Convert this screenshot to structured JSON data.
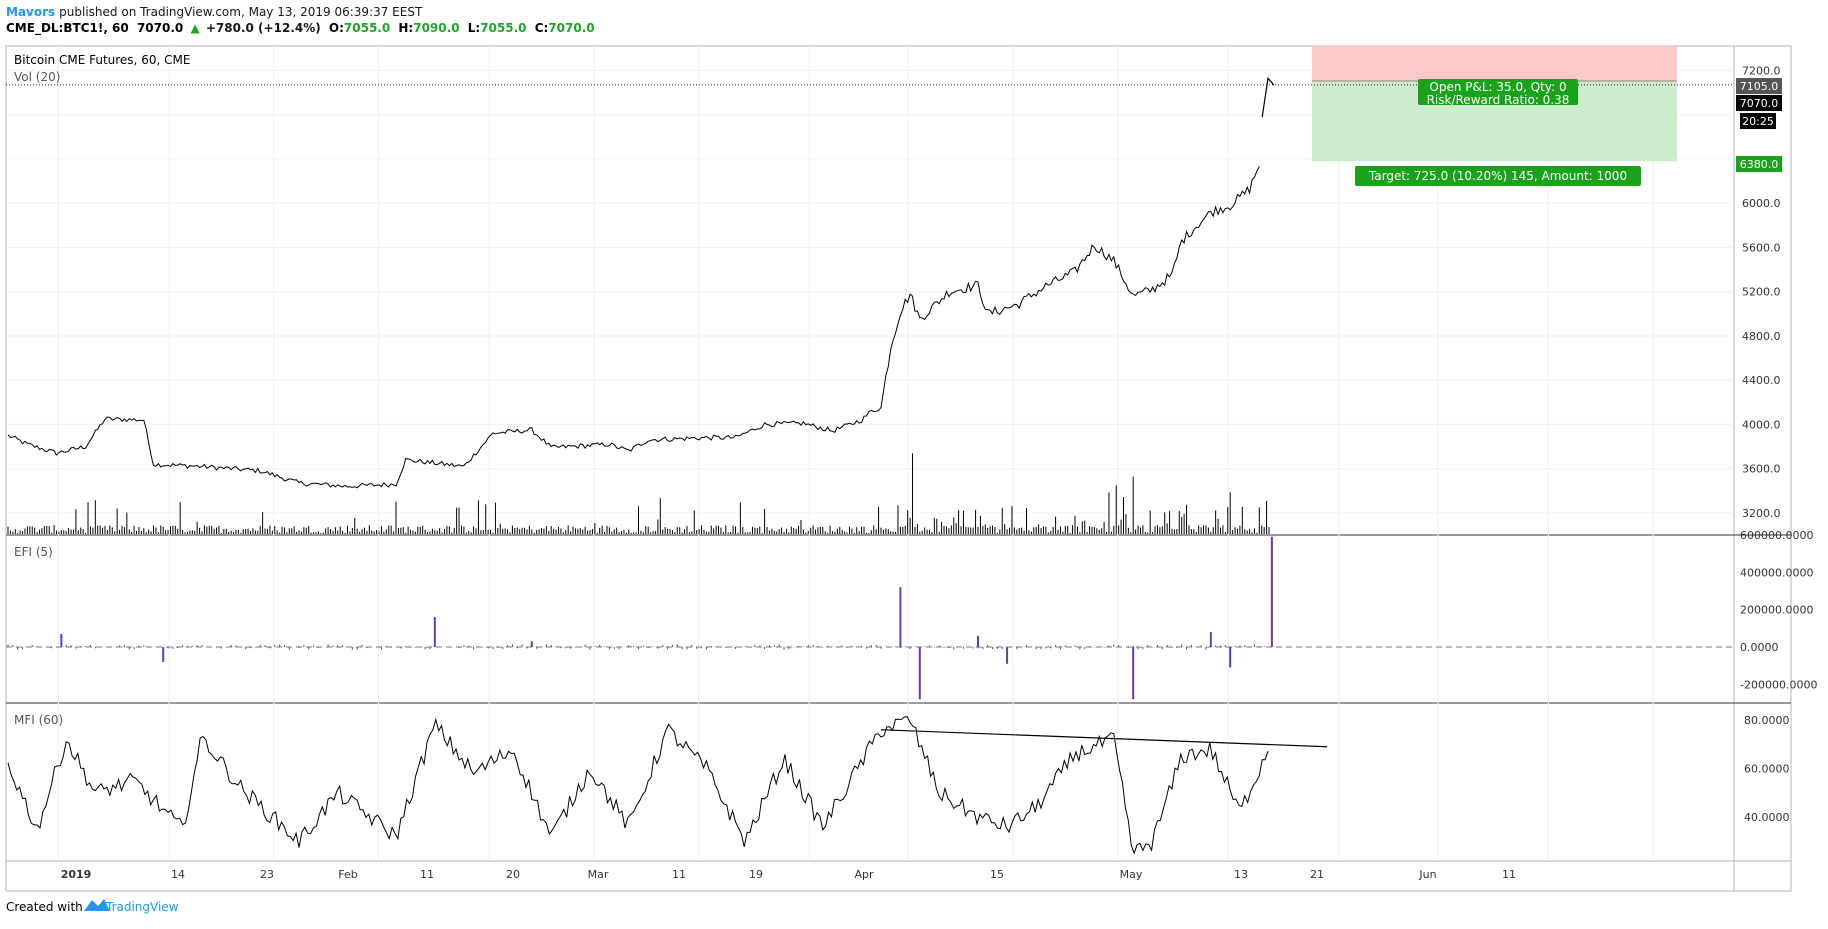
{
  "header": {
    "author": "Mavors",
    "published_text": "published on TradingView.com, May 13, 2019 06:39:37 EEST",
    "symbol": "CME_DL:BTC1!, 60",
    "last_price": "7070.0",
    "change": "+780.0 (+12.4%)",
    "ohlc": [
      {
        "label": "O:",
        "value": "7055.0"
      },
      {
        "label": "H:",
        "value": "7090.0"
      },
      {
        "label": "L:",
        "value": "7055.0"
      },
      {
        "label": "C:",
        "value": "7070.0"
      }
    ]
  },
  "footer": {
    "created_with": "Created with",
    "brand": "TradingView"
  },
  "colors": {
    "up": "#26a69a",
    "green_text": "#21a32a",
    "price_line": "#000000",
    "efi": "#673ab7",
    "risk_zone": "#ffc9c9",
    "reward_zone": "#cdeccd",
    "label_green": "#1aa31a",
    "brand_blue": "#2196f3"
  },
  "chart_data": [
    {
      "type": "line",
      "title": "Bitcoin CME Futures, 60, CME",
      "subtitle": "Vol (20)",
      "y_ticks": [
        3200,
        3600,
        4000,
        4400,
        4800,
        5200,
        5600,
        6000,
        6400,
        6800,
        7200
      ],
      "y_tick_labels": [
        "3200.0",
        "3600.0",
        "4000.0",
        "4400.0",
        "4800.0",
        "5200.0",
        "5600.0",
        "6000.0",
        "",
        "",
        "7200.0"
      ],
      "ylim": [
        3000,
        7450
      ],
      "x_ticks": [
        "2019",
        "14",
        "23",
        "Feb",
        "11",
        "20",
        "Mar",
        "11",
        "19",
        "Apr",
        "15",
        "May",
        "13",
        "21",
        "Jun",
        "11"
      ],
      "price_anchors": [
        {
          "d": 0,
          "v": 3900
        },
        {
          "d": 2,
          "v": 3820
        },
        {
          "d": 5,
          "v": 3740
        },
        {
          "d": 8,
          "v": 3800
        },
        {
          "d": 10,
          "v": 4050
        },
        {
          "d": 14,
          "v": 4040
        },
        {
          "d": 15,
          "v": 3640
        },
        {
          "d": 20,
          "v": 3620
        },
        {
          "d": 26,
          "v": 3580
        },
        {
          "d": 30,
          "v": 3470
        },
        {
          "d": 35,
          "v": 3440
        },
        {
          "d": 40,
          "v": 3460
        },
        {
          "d": 41,
          "v": 3680
        },
        {
          "d": 47,
          "v": 3620
        },
        {
          "d": 50,
          "v": 3920
        },
        {
          "d": 54,
          "v": 3950
        },
        {
          "d": 56,
          "v": 3790
        },
        {
          "d": 62,
          "v": 3820
        },
        {
          "d": 64,
          "v": 3760
        },
        {
          "d": 66,
          "v": 3860
        },
        {
          "d": 72,
          "v": 3880
        },
        {
          "d": 75,
          "v": 3880
        },
        {
          "d": 78,
          "v": 4000
        },
        {
          "d": 82,
          "v": 4010
        },
        {
          "d": 85,
          "v": 3940
        },
        {
          "d": 88,
          "v": 4040
        },
        {
          "d": 89,
          "v": 4120
        },
        {
          "d": 90,
          "v": 4150
        },
        {
          "d": 91,
          "v": 4700
        },
        {
          "d": 92,
          "v": 5020
        },
        {
          "d": 93,
          "v": 5180
        },
        {
          "d": 94,
          "v": 4950
        },
        {
          "d": 97,
          "v": 5200
        },
        {
          "d": 100,
          "v": 5260
        },
        {
          "d": 101,
          "v": 5000
        },
        {
          "d": 104,
          "v": 5080
        },
        {
          "d": 107,
          "v": 5250
        },
        {
          "d": 110,
          "v": 5380
        },
        {
          "d": 112,
          "v": 5620
        },
        {
          "d": 114,
          "v": 5480
        },
        {
          "d": 116,
          "v": 5160
        },
        {
          "d": 118,
          "v": 5220
        },
        {
          "d": 120,
          "v": 5350
        },
        {
          "d": 121,
          "v": 5660
        },
        {
          "d": 122,
          "v": 5750
        },
        {
          "d": 124,
          "v": 5920
        },
        {
          "d": 126,
          "v": 5980
        },
        {
          "d": 128,
          "v": 6130
        },
        {
          "d": 129,
          "v": 6350
        }
      ],
      "gap_price": {
        "start": 129.3,
        "end": 130.5,
        "values": [
          6780,
          7130,
          7070
        ]
      }
    },
    {
      "type": "bar",
      "title": "EFI (5)",
      "y_ticks": [
        -200000,
        0,
        200000,
        400000,
        600000
      ],
      "y_tick_labels": [
        "-200000.0000",
        "0.0000",
        "200000.0000",
        "400000.0000",
        "600000.0000"
      ],
      "ylim": [
        -300000,
        600000
      ],
      "spikes": [
        {
          "d": 5.5,
          "v": 70000
        },
        {
          "d": 16,
          "v": -80000
        },
        {
          "d": 44,
          "v": 160000
        },
        {
          "d": 54,
          "v": 30000
        },
        {
          "d": 92,
          "v": 320000
        },
        {
          "d": 94,
          "v": -280000
        },
        {
          "d": 100,
          "v": 60000
        },
        {
          "d": 103,
          "v": -90000
        },
        {
          "d": 116,
          "v": -280000
        },
        {
          "d": 124,
          "v": 80000
        },
        {
          "d": 126,
          "v": -110000
        },
        {
          "d": 130.3,
          "v": 590000
        }
      ]
    },
    {
      "type": "line",
      "title": "MFI (60)",
      "y_ticks": [
        40,
        60,
        80
      ],
      "y_tick_labels": [
        "40.0000",
        "60.0000",
        "80.0000"
      ],
      "ylim": [
        22,
        87
      ],
      "mfi_anchors": [
        {
          "d": 0,
          "v": 62
        },
        {
          "d": 3,
          "v": 35
        },
        {
          "d": 6,
          "v": 72
        },
        {
          "d": 9,
          "v": 50
        },
        {
          "d": 13,
          "v": 55
        },
        {
          "d": 18,
          "v": 35
        },
        {
          "d": 20,
          "v": 73
        },
        {
          "d": 24,
          "v": 52
        },
        {
          "d": 30,
          "v": 30
        },
        {
          "d": 34,
          "v": 50
        },
        {
          "d": 40,
          "v": 32
        },
        {
          "d": 44,
          "v": 78
        },
        {
          "d": 48,
          "v": 58
        },
        {
          "d": 52,
          "v": 68
        },
        {
          "d": 56,
          "v": 32
        },
        {
          "d": 60,
          "v": 60
        },
        {
          "d": 64,
          "v": 36
        },
        {
          "d": 68,
          "v": 76
        },
        {
          "d": 72,
          "v": 60
        },
        {
          "d": 76,
          "v": 30
        },
        {
          "d": 80,
          "v": 64
        },
        {
          "d": 84,
          "v": 36
        },
        {
          "d": 90,
          "v": 76
        },
        {
          "d": 93,
          "v": 80
        },
        {
          "d": 96,
          "v": 50
        },
        {
          "d": 100,
          "v": 40
        },
        {
          "d": 103,
          "v": 36
        },
        {
          "d": 106,
          "v": 44
        },
        {
          "d": 110,
          "v": 66
        },
        {
          "d": 114,
          "v": 72
        },
        {
          "d": 116,
          "v": 25
        },
        {
          "d": 118,
          "v": 30
        },
        {
          "d": 121,
          "v": 65
        },
        {
          "d": 124,
          "v": 68
        },
        {
          "d": 127,
          "v": 42
        },
        {
          "d": 130,
          "v": 69
        }
      ],
      "trendline": [
        {
          "d": 90,
          "v": 76
        },
        {
          "d": 136,
          "v": 69
        }
      ]
    }
  ],
  "annotations": {
    "open_pnl": "Open P&L: 35.0, Qty: 0",
    "risk_reward": "Risk/Reward Ratio: 0.38",
    "target": "Target: 725.0 (10.20%) 145, Amount: 1000",
    "stop_level": 7105,
    "entry_level": 7070,
    "target_level": 6380,
    "top_level": 7450,
    "stop_label": "7105.0",
    "price_label": "7070.0",
    "countdown": "20:25",
    "target_label": "6380.0"
  }
}
